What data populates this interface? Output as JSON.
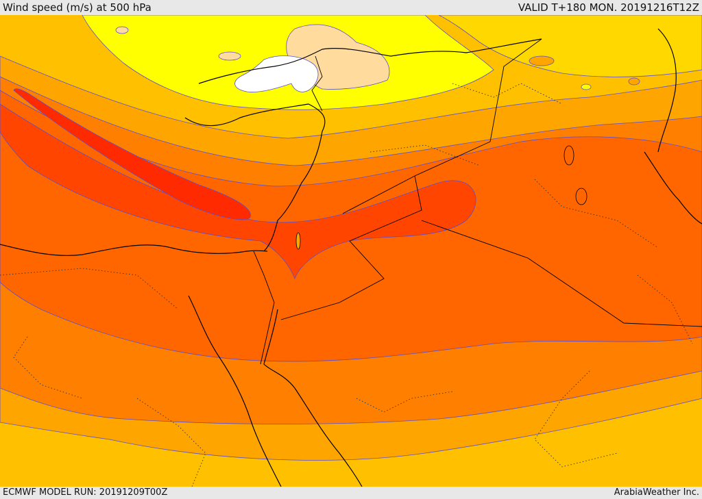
{
  "header": {
    "title": "Wind speed (m/s) at 500 hPa",
    "valid": "VALID T+180 MON. 20191216T12Z"
  },
  "footer": {
    "model_run": "ECMWF MODEL RUN: 20191209T00Z",
    "credit": "ArabiaWeather Inc."
  },
  "colors": {
    "white": "#ffffff",
    "peach": "#ffdc9e",
    "yellow": "#ffff00",
    "gold": "#ffd800",
    "amber": "#ffc000",
    "orange_light": "#ffa500",
    "orange": "#ff8000",
    "orange_dark": "#ff6600",
    "red_orange": "#ff4500",
    "red": "#ff2a00",
    "contour": "#5a4fcf",
    "border": "#000000"
  }
}
